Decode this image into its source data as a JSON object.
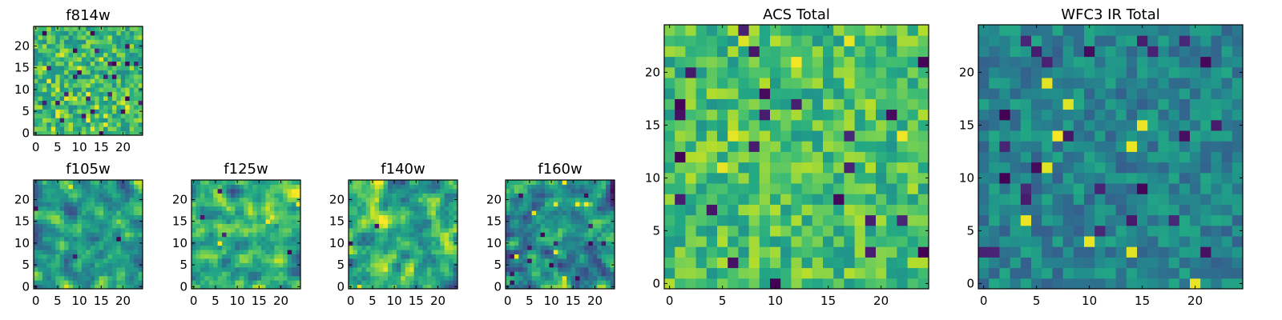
{
  "chart_data": [
    {
      "type": "heatmap",
      "title": "f814w",
      "colormap": "viridis",
      "grid": false,
      "xlim": [
        0,
        24
      ],
      "ylim": [
        0,
        24
      ],
      "xticks": [
        0,
        5,
        10,
        15,
        20
      ],
      "yticks": [
        0,
        5,
        10,
        15,
        20
      ],
      "values_note": "25x25 noise-like intensity field, mostly green-yellow with scattered dark pixels",
      "seed": 11,
      "smooth": 0,
      "base": 0.68,
      "amp": 0.42,
      "outlierRate": 0.045
    },
    {
      "type": "heatmap",
      "title": "f105w",
      "colormap": "viridis",
      "grid": false,
      "xlim": [
        0,
        24
      ],
      "ylim": [
        0,
        24
      ],
      "xticks": [
        0,
        5,
        10,
        15,
        20
      ],
      "yticks": [
        0,
        5,
        10,
        15,
        20
      ],
      "values_note": "25x25 smoothed intensity field, teal-green with darker patches",
      "seed": 23,
      "smooth": 1,
      "base": 0.55,
      "amp": 0.55,
      "outlierRate": 0.01
    },
    {
      "type": "heatmap",
      "title": "f125w",
      "colormap": "viridis",
      "grid": false,
      "xlim": [
        0,
        24
      ],
      "ylim": [
        0,
        24
      ],
      "xticks": [
        0,
        5,
        10,
        15,
        20
      ],
      "yticks": [
        0,
        5,
        10,
        15,
        20
      ],
      "values_note": "25x25 smoothed intensity field, green with bright upper-right",
      "seed": 37,
      "smooth": 1,
      "base": 0.62,
      "amp": 0.55,
      "outlierRate": 0.008
    },
    {
      "type": "heatmap",
      "title": "f140w",
      "colormap": "viridis",
      "grid": false,
      "xlim": [
        0,
        24
      ],
      "ylim": [
        0,
        24
      ],
      "xticks": [
        0,
        5,
        10,
        15,
        20
      ],
      "yticks": [
        0,
        5,
        10,
        15,
        20
      ],
      "values_note": "25x25 smoothed intensity field, green-yellow with dark spots",
      "seed": 41,
      "smooth": 1,
      "base": 0.62,
      "amp": 0.6,
      "outlierRate": 0.008
    },
    {
      "type": "heatmap",
      "title": "f160w",
      "colormap": "viridis",
      "grid": false,
      "xlim": [
        0,
        24
      ],
      "ylim": [
        0,
        24
      ],
      "xticks": [
        0,
        5,
        10,
        15,
        20
      ],
      "yticks": [
        0,
        5,
        10,
        15,
        20
      ],
      "values_note": "25x25 smoothed intensity field, teal with scattered dark pixels",
      "seed": 53,
      "smooth": 1,
      "base": 0.5,
      "amp": 0.6,
      "outlierRate": 0.015
    },
    {
      "type": "heatmap",
      "title": "ACS Total",
      "colormap": "viridis",
      "grid": false,
      "xlim": [
        0,
        24
      ],
      "ylim": [
        0,
        24
      ],
      "xticks": [
        0,
        5,
        10,
        15,
        20
      ],
      "yticks": [
        0,
        5,
        10,
        15,
        20
      ],
      "values_note": "25x25 intensity field, green-yellow with isolated dark pixels",
      "seed": 67,
      "smooth": 0,
      "base": 0.7,
      "amp": 0.38,
      "outlierRate": 0.03
    },
    {
      "type": "heatmap",
      "title": "WFC3 IR Total",
      "colormap": "viridis",
      "grid": false,
      "xlim": [
        0,
        24
      ],
      "ylim": [
        0,
        24
      ],
      "xticks": [
        0,
        5,
        10,
        15,
        20
      ],
      "yticks": [
        0,
        5,
        10,
        15,
        20
      ],
      "values_note": "25x25 intensity field, blue-teal with few bright yellow pixels",
      "seed": 79,
      "smooth": 0,
      "base": 0.45,
      "amp": 0.3,
      "outlierRate": 0.035
    }
  ]
}
